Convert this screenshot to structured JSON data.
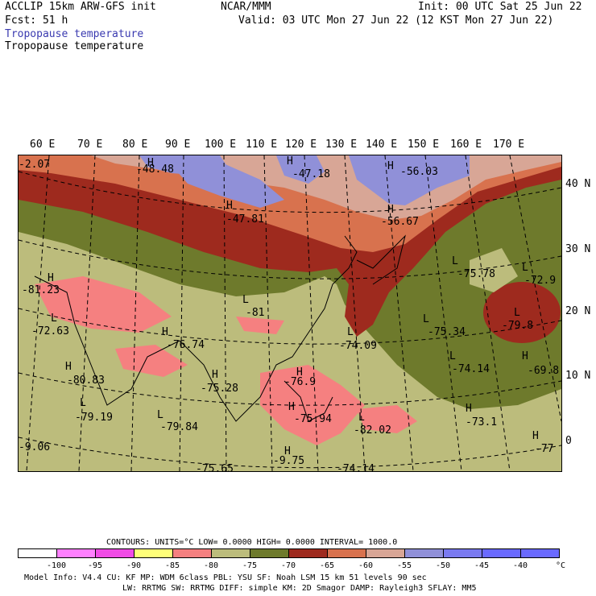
{
  "header": {
    "model": "ACCLIP 15km ARW-GFS init",
    "center": "NCAR/MMM",
    "init": "Init: 00 UTC Sat 25 Jun 22",
    "fcst": "Fcst:   51 h",
    "valid": "Valid: 03 UTC Mon 27 Jun 22 (12 KST Mon 27 Jun 22)",
    "field_shaded": "Tropopause temperature",
    "field_contour": "Tropopause temperature"
  },
  "colors": {
    "shaded_label": "#3a3ab0",
    "bins": [
      "#ffffff",
      "#ff80ff",
      "#f04ce6",
      "#ffff7a",
      "#f58080",
      "#bcbc7c",
      "#6e7a2c",
      "#9e2a1e",
      "#d8724e",
      "#d8a696",
      "#9090d8",
      "#7a7af0",
      "#6a6aff"
    ]
  },
  "map": {
    "top_lon_labels": [
      "60 E",
      "70 E",
      "80 E",
      "90 E",
      "100 E",
      "110 E",
      "120 E",
      "130 E",
      "140 E",
      "150 E",
      "160 E",
      "170 E"
    ],
    "right_lat_labels": [
      "40 N",
      "30 N",
      "20 N",
      "10 N",
      "0"
    ],
    "features": [
      {
        "mark": "H",
        "value": "-48.48"
      },
      {
        "mark": "H",
        "value": "-47.18"
      },
      {
        "mark": "H",
        "value": "-56.03"
      },
      {
        "mark": "H",
        "value": "-47.81"
      },
      {
        "mark": "H",
        "value": "-56.67"
      },
      {
        "mark": "L",
        "value": "-75.78"
      },
      {
        "mark": "L",
        "value": "-72.9"
      },
      {
        "mark": "H",
        "value": "-81.23"
      },
      {
        "mark": "L",
        "value": "-81"
      },
      {
        "mark": "L",
        "value": "-72.63"
      },
      {
        "mark": "H",
        "value": "-76.74"
      },
      {
        "mark": "L",
        "value": "-75.34"
      },
      {
        "mark": "L",
        "value": "-79.8"
      },
      {
        "mark": "L",
        "value": "-74.09"
      },
      {
        "mark": "L",
        "value": "-74.14"
      },
      {
        "mark": "H",
        "value": "-69.8"
      },
      {
        "mark": "H",
        "value": "-80.83"
      },
      {
        "mark": "H",
        "value": "-75.28"
      },
      {
        "mark": "H",
        "value": "-76.9"
      },
      {
        "mark": "L",
        "value": "-79.19"
      },
      {
        "mark": "L",
        "value": "-79.84"
      },
      {
        "mark": "H",
        "value": "-75.94"
      },
      {
        "mark": "L",
        "value": "-82.02"
      },
      {
        "mark": "H",
        "value": "-73.1"
      },
      {
        "mark": "H",
        "value": "-77"
      },
      {
        "mark": "",
        "value": "-2.07"
      },
      {
        "mark": "",
        "value": "-9.06"
      },
      {
        "mark": "H",
        "value": "-9.75"
      },
      {
        "mark": "",
        "value": "-75.65"
      },
      {
        "mark": "",
        "value": "-74.14"
      }
    ]
  },
  "footer": {
    "contours": "CONTOURS:  UNITS=°C  LOW=  0.0000      HIGH=  0.0000      INTERVAL=   1000.0",
    "scale_ticks": [
      "-100",
      "-95",
      "-90",
      "-85",
      "-80",
      "-75",
      "-70",
      "-65",
      "-60",
      "-55",
      "-50",
      "-45",
      "-40"
    ],
    "unit": "°C",
    "line1": "Model Info: V4.4        CU: KF        MP: WDM 6class  PBL: YSU       SF: Noah LSM       15 km    51 levels    90 sec",
    "line2": "LW: RRTMG    SW: RRTMG   DIFF: simple KM: 2D Smagor DAMP: Rayleigh3  SFLAY: MM5"
  }
}
